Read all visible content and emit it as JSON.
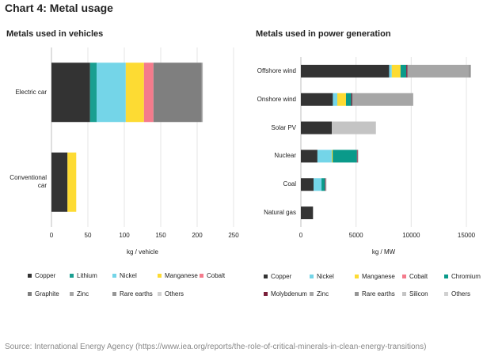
{
  "title": "Chart 4: Metal usage",
  "source": "Source: International Energy Agency (https://www.iea.org/reports/the-role-of-critical-minerals-in-clean-energy-transitions)",
  "colors": {
    "Copper": "#333333",
    "Lithium": "#1a9f91",
    "Nickel": "#74d5e8",
    "Manganese": "#fddb33",
    "Cobalt": "#f47b8c",
    "Graphite": "#7f7f7f",
    "Zinc": "#a6a6a6",
    "Rare earths": "#969696",
    "Others": "#d0d0d0",
    "Chromium": "#0a9a8a",
    "Molybdenum": "#7a1f3a",
    "Silicon": "#c4c4c4"
  },
  "chart_data": [
    {
      "type": "bar",
      "orientation": "horizontal",
      "stacked": true,
      "title": "Metals used in vehicles",
      "xlabel": "kg / vehicle",
      "xlim": [
        0,
        250
      ],
      "xticks": [
        0,
        50,
        100,
        150,
        200,
        250
      ],
      "categories": [
        "Electric car",
        "Conventional car"
      ],
      "series": [
        {
          "name": "Copper",
          "values": [
            53,
            22
          ]
        },
        {
          "name": "Lithium",
          "values": [
            9,
            0
          ]
        },
        {
          "name": "Nickel",
          "values": [
            40,
            0
          ]
        },
        {
          "name": "Manganese",
          "values": [
            25,
            12
          ]
        },
        {
          "name": "Cobalt",
          "values": [
            13,
            0
          ]
        },
        {
          "name": "Graphite",
          "values": [
            66,
            0
          ]
        },
        {
          "name": "Zinc",
          "values": [
            1,
            0
          ]
        },
        {
          "name": "Rare earths",
          "values": [
            0.5,
            0
          ]
        },
        {
          "name": "Others",
          "values": [
            0.3,
            0
          ]
        }
      ],
      "legend": [
        "Copper",
        "Lithium",
        "Nickel",
        "Manganese",
        "Cobalt",
        "Graphite",
        "Zinc",
        "Rare earths",
        "Others"
      ]
    },
    {
      "type": "bar",
      "orientation": "horizontal",
      "stacked": true,
      "title": "Metals used in power generation",
      "xlabel": "kg / MW",
      "xlim": [
        0,
        15000
      ],
      "xticks": [
        0,
        5000,
        10000,
        15000
      ],
      "categories": [
        "Offshore wind",
        "Onshore wind",
        "Solar PV",
        "Nuclear",
        "Coal",
        "Natural gas"
      ],
      "series": [
        {
          "name": "Copper",
          "values": [
            8000,
            2900,
            2800,
            1500,
            1150,
            1100
          ]
        },
        {
          "name": "Nickel",
          "values": [
            240,
            400,
            0,
            1300,
            720,
            0
          ]
        },
        {
          "name": "Manganese",
          "values": [
            790,
            790,
            0,
            80,
            0,
            0
          ]
        },
        {
          "name": "Cobalt",
          "values": [
            0,
            0,
            0,
            0,
            0,
            0
          ]
        },
        {
          "name": "Chromium",
          "values": [
            525,
            470,
            0,
            2200,
            310,
            0
          ]
        },
        {
          "name": "Molybdenum",
          "values": [
            110,
            100,
            0,
            70,
            70,
            0
          ]
        },
        {
          "name": "Zinc",
          "values": [
            5500,
            5500,
            0,
            0,
            0,
            0
          ]
        },
        {
          "name": "Rare earths",
          "values": [
            240,
            15,
            0,
            0,
            0,
            0
          ]
        },
        {
          "name": "Silicon",
          "values": [
            0,
            0,
            4000,
            0,
            0,
            0
          ]
        },
        {
          "name": "Others",
          "values": [
            0,
            0,
            0,
            80,
            80,
            0
          ]
        }
      ],
      "legend": [
        "Copper",
        "Nickel",
        "Manganese",
        "Cobalt",
        "Chromium",
        "Molybdenum",
        "Zinc",
        "Rare earths",
        "Silicon",
        "Others"
      ]
    }
  ]
}
